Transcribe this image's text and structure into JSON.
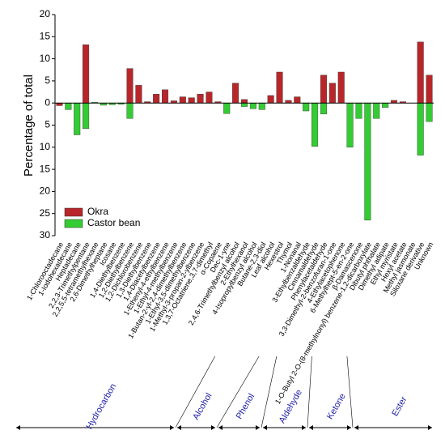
{
  "chart_data": {
    "type": "bar",
    "y_label": "Percentage of total",
    "categories": [
      "1-Chlorooctadecane",
      "1-Iodohexadecane",
      "Heptadecane",
      "2,2,3-Trimethylpentane",
      "2,2,5,5-tetramethylhexane",
      "2,6-Dimethylheptane",
      "Icosane",
      "1,4-Diethylbenzene",
      "1,2-Diethylbenzene",
      "1,2-Dichlorobenzene",
      "1,3-Diethylbenzene",
      "1,4-Diacetylbenzene",
      "1-Ethenyl-4-ethylbenzene",
      "1-Ethyl-4-methylbenzene",
      "1-Butan-2-yl-2,4-dimethylbenzene",
      "1-Ethyl-3,5-dimethylbenzene",
      "1-Methyl-3-propan-2-ylbenzene",
      "1,3,7-Octatriene,3,7-dimethyl",
      "α-Copaene",
      "Dec-1-yne",
      "2,4,6-Trimethylbenzyl alcohol",
      "2-Ethylhexanol",
      "4-Isopropylbenzyl alcohol",
      "Butane-2,3-diol",
      "Leaf alcohol",
      "Hexestrol",
      "Thymol",
      "1-Nonanal",
      "3-Ethylbenzaldehyde",
      "Cinnamaldehyde",
      "Phenylacetaldehyde",
      "3,3-Dimethyl-2-benzofuran-1-one",
      "4-Ethylacetophenone",
      "6-Methylhept-5-en-2-one",
      "β-Damascenone",
      "1-O-Butyl 2-O-(8-methylnonyl) benzene-1,2-dicarboxylate",
      "Dibutyl phthalate",
      "Dimethyl adipate",
      "Ethyl myristate",
      "Hexyl acetate",
      "Methyl jasmonate",
      "Siloxane derivative",
      "Unknown"
    ],
    "series": [
      {
        "name": "Okra",
        "color": "#b8262a",
        "values": [
          -0.6,
          null,
          null,
          13.2,
          null,
          null,
          null,
          null,
          7.8,
          4,
          0.3,
          2,
          3,
          0.5,
          1.4,
          1.2,
          2,
          2.5,
          0.3,
          null,
          4.5,
          0.8,
          null,
          null,
          1.7,
          7,
          0.6,
          1.4,
          null,
          null,
          6.3,
          4.5,
          7,
          null,
          null,
          null,
          null,
          null,
          0.6,
          0.3,
          null,
          13.8,
          6.3
        ]
      },
      {
        "name": "Castor bean",
        "color": "#33cc33",
        "values": [
          null,
          -1.5,
          -7.2,
          -5.8,
          0.2,
          -0.5,
          -0.4,
          -0.3,
          -3.5,
          null,
          null,
          null,
          null,
          null,
          null,
          null,
          null,
          null,
          null,
          -2.4,
          null,
          -0.8,
          -1.3,
          -1.5,
          null,
          null,
          null,
          null,
          -1.8,
          -9.8,
          -2.5,
          null,
          null,
          -10,
          -3.5,
          -26.5,
          -3.5,
          -1,
          null,
          null,
          null,
          -11.8,
          -4.2
        ]
      }
    ],
    "ylim": [
      -30,
      20
    ],
    "yticks": [
      20,
      15,
      10,
      5,
      0,
      {
        "value": -5,
        "label": "5"
      },
      {
        "value": -10,
        "label": "10"
      },
      {
        "value": -15,
        "label": "15"
      },
      {
        "value": -20,
        "label": "20"
      },
      {
        "value": -25,
        "label": "25"
      },
      {
        "value": -30,
        "label": "30"
      }
    ],
    "legend": "lower-left",
    "groups": [
      "Hydrocarbon",
      "Alcohol",
      "Phenol",
      "Aldehyde",
      "Ketone",
      "Ester"
    ]
  }
}
